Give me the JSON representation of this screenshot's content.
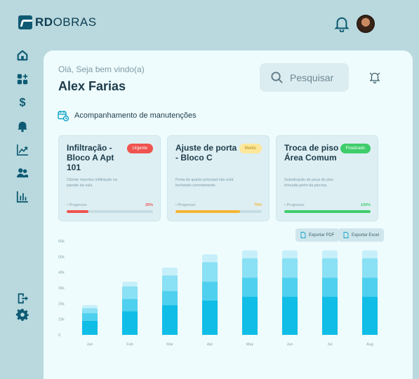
{
  "app": {
    "logo_bold": "RD",
    "logo_light": "OBRAS"
  },
  "header": {
    "greeting": "Olá, Seja bem vindo(a)",
    "user_name": "Alex Farias",
    "search_placeholder": "Pesquisar"
  },
  "section": {
    "title": "Acompanhamento de manutenções"
  },
  "cards": [
    {
      "title": "Infiltração - Bloco A Apt 101",
      "badge": "Urgente",
      "badge_color": "#ef5350",
      "description": "Cliente reportou infiltração na parede da sala",
      "progress_label": "• Progresso",
      "progress_text": "25%",
      "progress": 0.25,
      "color": "#ef5350"
    },
    {
      "title": "Ajuste de porta - Bloco C",
      "badge": "Medio",
      "badge_color": "#fde79a",
      "description": "Porta do quarto principal não está fechando corretamente.",
      "progress_label": "• Progresso",
      "progress_text": "75%",
      "progress": 0.75,
      "color": "#f5b533"
    },
    {
      "title": "Troca de piso – Área Comum",
      "badge": "Finalizado",
      "badge_color": "#3fcd6b",
      "description": "Substituição de peça de piso trincada perto da piscina.",
      "progress_label": "• Progresso",
      "progress_text": "100%",
      "progress": 1.0,
      "color": "#3fcd6b"
    }
  ],
  "exports": {
    "pdf": "Exportar PDF",
    "excel": "Exportar Excel"
  },
  "chart_data": {
    "type": "bar",
    "stacked": true,
    "categories": [
      "Jan",
      "Feb",
      "Mar",
      "Apr",
      "May",
      "Jun",
      "Jul",
      "Aug"
    ],
    "y_ticks": [
      "0",
      "10k",
      "20k",
      "30k",
      "40k",
      "50k",
      "60k"
    ],
    "ylim": [
      0,
      60000
    ],
    "series": [
      {
        "values": [
          9000,
          15000,
          19000,
          22000,
          24500,
          24500,
          24500,
          24500
        ],
        "color": "#0fbde6"
      },
      {
        "values": [
          5000,
          8000,
          9000,
          12000,
          12000,
          12000,
          12000,
          12000
        ],
        "color": "#4fd0ef"
      },
      {
        "values": [
          3000,
          8000,
          10000,
          12500,
          12500,
          12500,
          12500,
          12500
        ],
        "color": "#8ae0f4"
      },
      {
        "values": [
          2000,
          3000,
          5000,
          5000,
          5000,
          5000,
          5000,
          5000
        ],
        "color": "#c6effa"
      }
    ],
    "grid": false
  }
}
